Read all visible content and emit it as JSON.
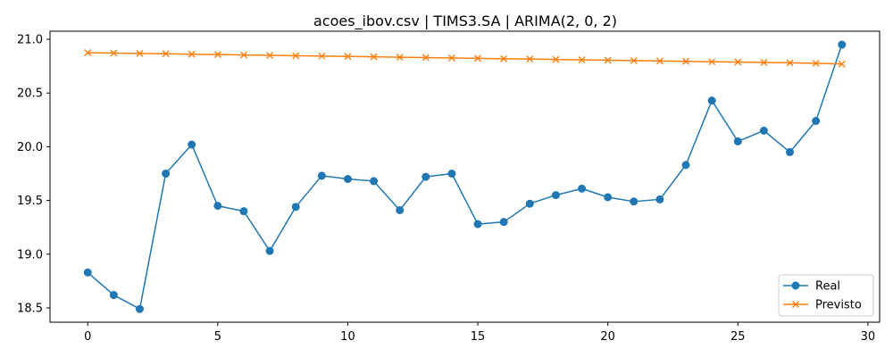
{
  "chart_data": {
    "type": "line",
    "title": "acoes_ibov.csv | TIMS3.SA | ARIMA(2, 0, 2)",
    "xlabel": "",
    "ylabel": "",
    "xlim": [
      -1.45,
      30.45
    ],
    "ylim": [
      18.367,
      21.075
    ],
    "grid": false,
    "legend_position": "lower-right",
    "x_ticks": [
      0,
      5,
      10,
      15,
      20,
      25,
      30
    ],
    "x_tick_labels": [
      "0",
      "5",
      "10",
      "15",
      "20",
      "25",
      "30"
    ],
    "y_ticks": [
      18.5,
      19.0,
      19.5,
      20.0,
      20.5,
      21.0
    ],
    "y_tick_labels": [
      "18.5",
      "19.0",
      "19.5",
      "20.0",
      "20.5",
      "21.0"
    ],
    "x": [
      0,
      1,
      2,
      3,
      4,
      5,
      6,
      7,
      8,
      9,
      10,
      11,
      12,
      13,
      14,
      15,
      16,
      17,
      18,
      19,
      20,
      21,
      22,
      23,
      24,
      25,
      26,
      27,
      28,
      29
    ],
    "series": [
      {
        "name": "Real",
        "color": "#1f77b4",
        "marker": "circle",
        "values": [
          18.83,
          18.62,
          18.49,
          19.75,
          20.02,
          19.45,
          19.4,
          19.03,
          19.44,
          19.73,
          19.7,
          19.68,
          19.41,
          19.72,
          19.75,
          19.28,
          19.3,
          19.47,
          19.55,
          19.61,
          19.53,
          19.49,
          19.51,
          19.83,
          20.43,
          20.05,
          20.15,
          19.95,
          20.24,
          20.95
        ]
      },
      {
        "name": "Previsto",
        "color": "#ff7f0e",
        "marker": "x",
        "values": [
          20.875,
          20.872,
          20.868,
          20.865,
          20.861,
          20.858,
          20.854,
          20.851,
          20.847,
          20.844,
          20.84,
          20.837,
          20.833,
          20.83,
          20.826,
          20.823,
          20.819,
          20.816,
          20.812,
          20.809,
          20.805,
          20.802,
          20.798,
          20.795,
          20.791,
          20.788,
          20.784,
          20.781,
          20.777,
          20.77
        ]
      }
    ]
  }
}
